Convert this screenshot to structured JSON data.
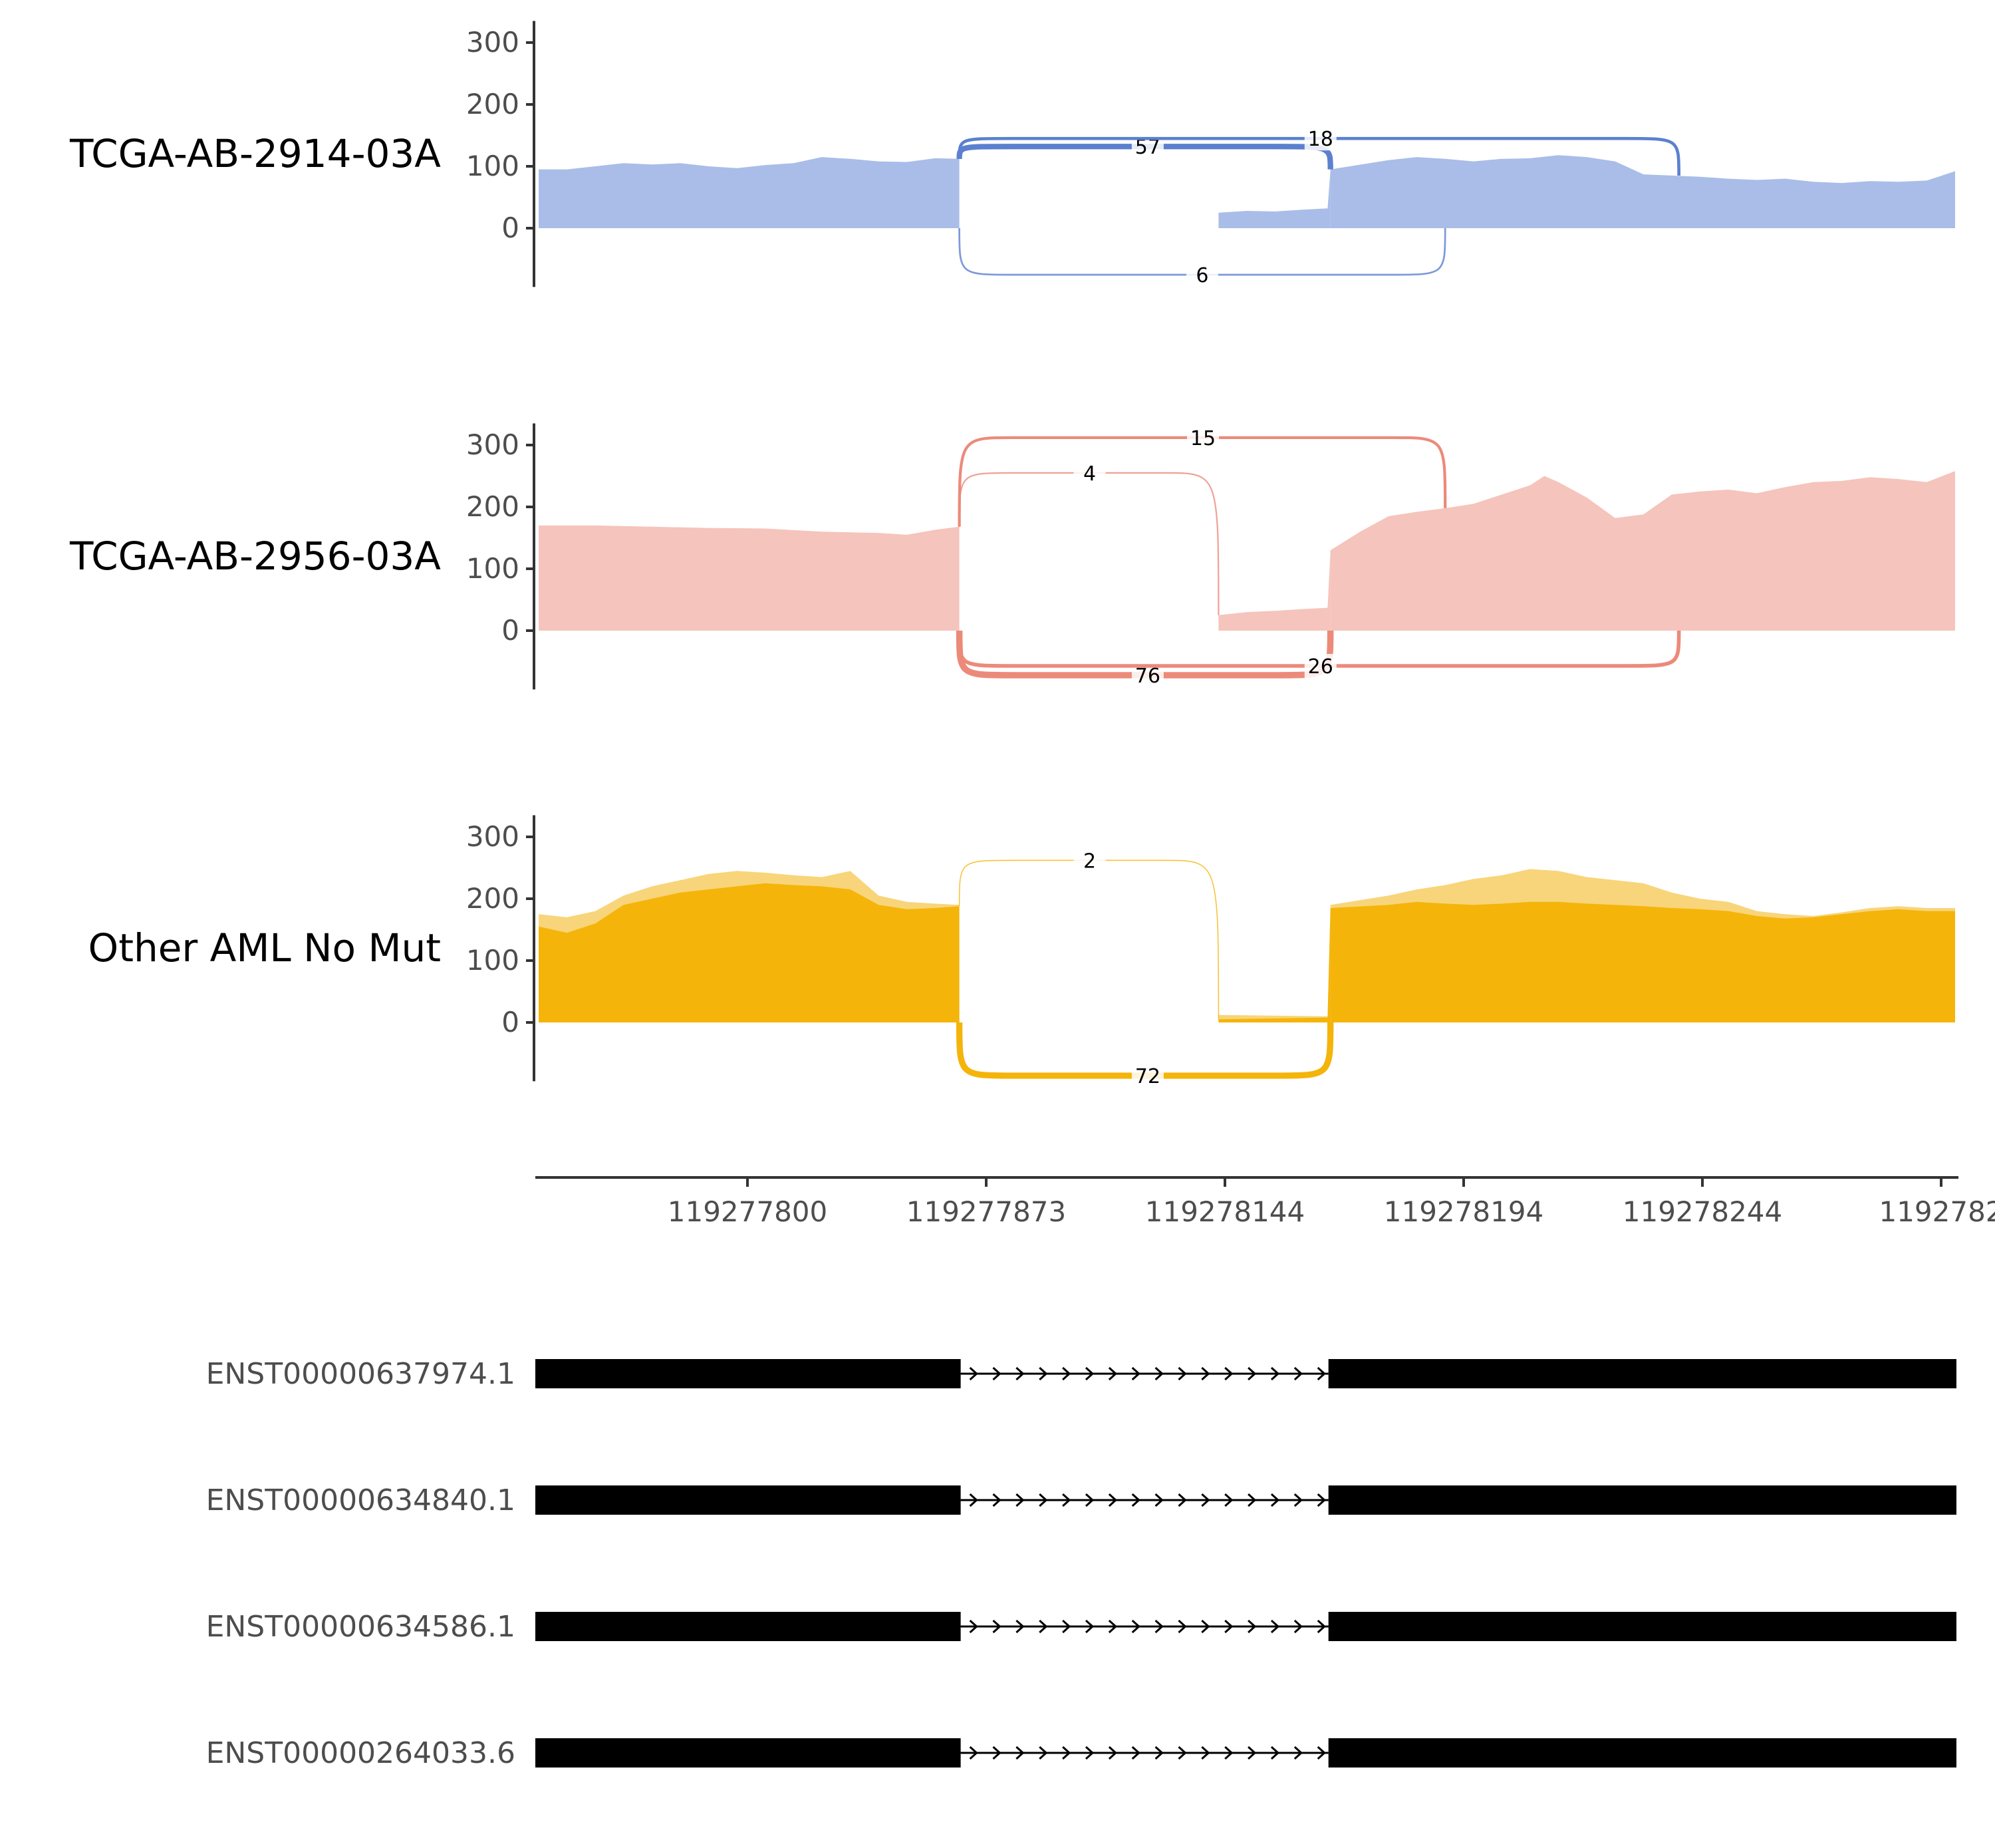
{
  "chart_data": {
    "type": "sashimi",
    "title": "",
    "x_axis": {
      "tick_labels": [
        "119277800",
        "119277873",
        "119278144",
        "119278194",
        "119278244",
        "1192782"
      ]
    },
    "y_axis": {
      "ticks": [
        0,
        100,
        200,
        300
      ],
      "ylim": [
        -95,
        335
      ]
    },
    "exons": [
      {
        "from": 0.0,
        "to": 0.297
      },
      {
        "from": 0.48,
        "to": 0.559
      },
      {
        "from": 0.559,
        "to": 1.0
      }
    ],
    "tracks": [
      {
        "name": "TCGA-AB-2914-03A",
        "color": "#5b80cf",
        "fill": "#a9bde8",
        "coverage": [
          [
            0.0,
            95
          ],
          [
            0.02,
            95
          ],
          [
            0.04,
            100
          ],
          [
            0.06,
            105
          ],
          [
            0.08,
            103
          ],
          [
            0.1,
            105
          ],
          [
            0.12,
            100
          ],
          [
            0.14,
            97
          ],
          [
            0.16,
            102
          ],
          [
            0.18,
            105
          ],
          [
            0.2,
            115
          ],
          [
            0.22,
            112
          ],
          [
            0.24,
            108
          ],
          [
            0.26,
            107
          ],
          [
            0.28,
            113
          ],
          [
            0.297,
            112
          ],
          [
            0.3,
            30
          ],
          [
            0.48,
            25
          ],
          [
            0.5,
            28
          ],
          [
            0.52,
            27
          ],
          [
            0.54,
            30
          ],
          [
            0.557,
            32
          ],
          [
            0.559,
            95
          ],
          [
            0.6,
            110
          ],
          [
            0.62,
            115
          ],
          [
            0.64,
            112
          ],
          [
            0.66,
            108
          ],
          [
            0.68,
            112
          ],
          [
            0.7,
            113
          ],
          [
            0.72,
            118
          ],
          [
            0.74,
            115
          ],
          [
            0.76,
            108
          ],
          [
            0.78,
            87
          ],
          [
            0.8,
            85
          ],
          [
            0.82,
            83
          ],
          [
            0.84,
            80
          ],
          [
            0.86,
            78
          ],
          [
            0.88,
            80
          ],
          [
            0.9,
            75
          ],
          [
            0.92,
            73
          ],
          [
            0.94,
            76
          ],
          [
            0.96,
            75
          ],
          [
            0.98,
            77
          ],
          [
            1.0,
            92
          ]
        ],
        "junctions": [
          {
            "count": 57,
            "start": 0.297,
            "end": 0.559,
            "side": "top"
          },
          {
            "count": 18,
            "start": 0.297,
            "end": 0.805,
            "side": "top"
          },
          {
            "count": 6,
            "start": 0.297,
            "end": 0.64,
            "side": "bottom"
          }
        ]
      },
      {
        "name": "TCGA-AB-2956-03A",
        "color": "#ec8a7a",
        "fill": "#f5c4bc",
        "coverage": [
          [
            0.0,
            170
          ],
          [
            0.04,
            170
          ],
          [
            0.08,
            168
          ],
          [
            0.12,
            166
          ],
          [
            0.16,
            165
          ],
          [
            0.2,
            160
          ],
          [
            0.24,
            158
          ],
          [
            0.26,
            155
          ],
          [
            0.28,
            163
          ],
          [
            0.297,
            168
          ],
          [
            0.3,
            30
          ],
          [
            0.48,
            25
          ],
          [
            0.5,
            30
          ],
          [
            0.52,
            32
          ],
          [
            0.54,
            35
          ],
          [
            0.557,
            37
          ],
          [
            0.559,
            130
          ],
          [
            0.58,
            160
          ],
          [
            0.6,
            185
          ],
          [
            0.62,
            192
          ],
          [
            0.64,
            198
          ],
          [
            0.66,
            205
          ],
          [
            0.68,
            220
          ],
          [
            0.7,
            235
          ],
          [
            0.71,
            250
          ],
          [
            0.72,
            240
          ],
          [
            0.74,
            215
          ],
          [
            0.76,
            182
          ],
          [
            0.78,
            188
          ],
          [
            0.8,
            220
          ],
          [
            0.82,
            225
          ],
          [
            0.84,
            228
          ],
          [
            0.86,
            222
          ],
          [
            0.88,
            232
          ],
          [
            0.9,
            240
          ],
          [
            0.92,
            242
          ],
          [
            0.94,
            248
          ],
          [
            0.96,
            245
          ],
          [
            0.98,
            240
          ],
          [
            1.0,
            258
          ]
        ],
        "junctions": [
          {
            "count": 15,
            "start": 0.297,
            "end": 0.64,
            "side": "top"
          },
          {
            "count": 4,
            "start": 0.297,
            "end": 0.48,
            "side": "top"
          },
          {
            "count": 76,
            "start": 0.297,
            "end": 0.559,
            "side": "bottom"
          },
          {
            "count": 26,
            "start": 0.297,
            "end": 0.805,
            "side": "bottom"
          }
        ]
      },
      {
        "name": "Other AML No Mut",
        "color": "#f5b40a",
        "fill": "#f5b40a",
        "fill_light": "#f8d57a",
        "coverage": [
          [
            0.0,
            155
          ],
          [
            0.02,
            145
          ],
          [
            0.04,
            160
          ],
          [
            0.06,
            190
          ],
          [
            0.08,
            200
          ],
          [
            0.1,
            210
          ],
          [
            0.12,
            215
          ],
          [
            0.14,
            220
          ],
          [
            0.16,
            225
          ],
          [
            0.18,
            222
          ],
          [
            0.2,
            220
          ],
          [
            0.22,
            215
          ],
          [
            0.24,
            190
          ],
          [
            0.26,
            183
          ],
          [
            0.28,
            185
          ],
          [
            0.297,
            188
          ],
          [
            0.3,
            5
          ],
          [
            0.48,
            5
          ],
          [
            0.557,
            8
          ],
          [
            0.559,
            185
          ],
          [
            0.6,
            190
          ],
          [
            0.62,
            195
          ],
          [
            0.64,
            192
          ],
          [
            0.66,
            190
          ],
          [
            0.68,
            192
          ],
          [
            0.7,
            195
          ],
          [
            0.72,
            195
          ],
          [
            0.74,
            192
          ],
          [
            0.76,
            190
          ],
          [
            0.78,
            188
          ],
          [
            0.8,
            185
          ],
          [
            0.82,
            183
          ],
          [
            0.84,
            180
          ],
          [
            0.86,
            172
          ],
          [
            0.88,
            168
          ],
          [
            0.9,
            170
          ],
          [
            0.92,
            175
          ],
          [
            0.94,
            180
          ],
          [
            0.96,
            183
          ],
          [
            0.98,
            180
          ],
          [
            1.0,
            180
          ]
        ],
        "coverage_upper": [
          [
            0.0,
            175
          ],
          [
            0.02,
            170
          ],
          [
            0.04,
            180
          ],
          [
            0.06,
            205
          ],
          [
            0.08,
            220
          ],
          [
            0.1,
            230
          ],
          [
            0.12,
            240
          ],
          [
            0.14,
            245
          ],
          [
            0.16,
            242
          ],
          [
            0.18,
            238
          ],
          [
            0.2,
            235
          ],
          [
            0.22,
            245
          ],
          [
            0.24,
            205
          ],
          [
            0.26,
            195
          ],
          [
            0.28,
            192
          ],
          [
            0.297,
            190
          ],
          [
            0.3,
            12
          ],
          [
            0.48,
            12
          ],
          [
            0.557,
            10
          ],
          [
            0.559,
            190
          ],
          [
            0.6,
            205
          ],
          [
            0.62,
            215
          ],
          [
            0.64,
            222
          ],
          [
            0.66,
            232
          ],
          [
            0.68,
            238
          ],
          [
            0.7,
            248
          ],
          [
            0.72,
            245
          ],
          [
            0.74,
            235
          ],
          [
            0.76,
            230
          ],
          [
            0.78,
            225
          ],
          [
            0.8,
            210
          ],
          [
            0.82,
            200
          ],
          [
            0.84,
            195
          ],
          [
            0.86,
            180
          ],
          [
            0.88,
            175
          ],
          [
            0.9,
            172
          ],
          [
            0.92,
            178
          ],
          [
            0.94,
            185
          ],
          [
            0.96,
            188
          ],
          [
            0.98,
            185
          ],
          [
            1.0,
            185
          ]
        ],
        "junctions": [
          {
            "count": 2,
            "start": 0.297,
            "end": 0.48,
            "side": "top"
          },
          {
            "count": 72,
            "start": 0.297,
            "end": 0.559,
            "side": "bottom"
          }
        ]
      }
    ],
    "transcripts": [
      {
        "id": "ENST00000637974.1"
      },
      {
        "id": "ENST00000634840.1"
      },
      {
        "id": "ENST00000634586.1"
      },
      {
        "id": "ENST00000264033.6"
      }
    ]
  }
}
